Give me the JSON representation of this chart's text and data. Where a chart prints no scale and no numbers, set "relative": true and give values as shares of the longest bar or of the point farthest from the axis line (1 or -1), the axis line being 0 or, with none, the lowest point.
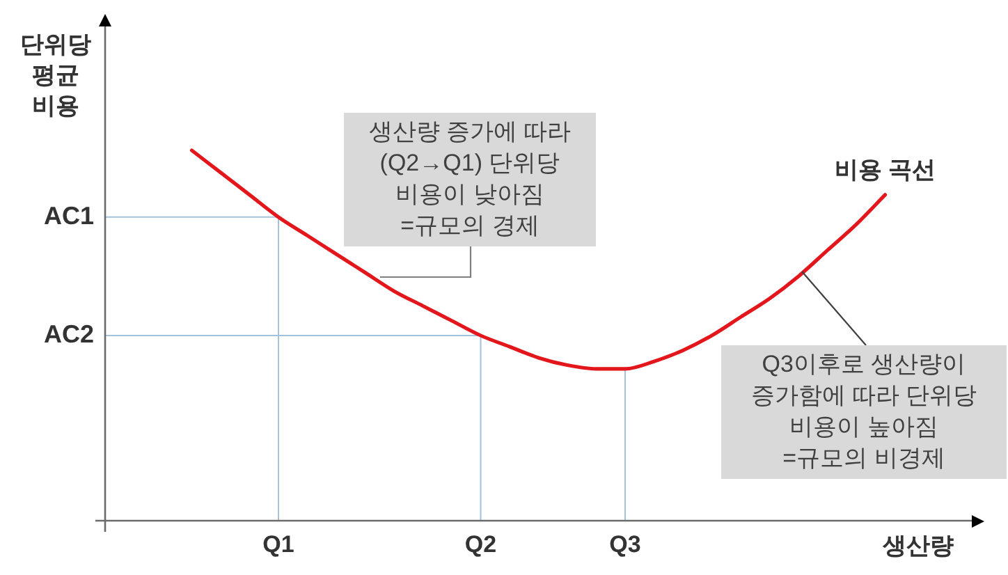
{
  "chart_data": {
    "type": "line",
    "relative": true,
    "xlabel": "생산량",
    "ylabel": "단위당 평균 비용",
    "categories": [
      null,
      null,
      null,
      null,
      null,
      null,
      "Q1",
      null,
      null,
      null,
      null,
      null,
      null,
      "Q2",
      null,
      null,
      null,
      null,
      "Q3",
      null,
      null,
      null,
      null,
      null,
      null,
      null,
      null,
      null,
      null,
      null,
      null
    ],
    "series": [
      {
        "name": "비용 곡선",
        "color": "#e3161c",
        "values": [
          null,
          null,
          null,
          1.0,
          0.94,
          0.88,
          0.82,
          0.77,
          0.72,
          0.67,
          0.62,
          0.58,
          0.54,
          0.5,
          0.47,
          0.44,
          0.42,
          0.41,
          0.41,
          0.43,
          0.46,
          0.5,
          0.55,
          0.6,
          0.66,
          0.73,
          0.8,
          0.88,
          null,
          null,
          null
        ]
      }
    ],
    "ref_lines": [
      {
        "axis": "y",
        "value": 0.82,
        "label": "AC1",
        "color": "#a4c2db"
      },
      {
        "axis": "y",
        "value": 0.5,
        "label": "AC2",
        "color": "#a4c2db"
      },
      {
        "axis": "x",
        "value": "Q1",
        "color": "#a4c2db"
      },
      {
        "axis": "x",
        "value": "Q2",
        "color": "#a4c2db"
      },
      {
        "axis": "x",
        "value": "Q3",
        "color": "#a4c2db"
      }
    ],
    "marker": "none",
    "line_style": "solid",
    "annotations": [
      "생산량 증가에 따라\n(Q2→Q1) 단위당\n비용이 낮아짐\n=규모의 경제",
      "Q3이후로 생산량이\n증가함에 따라 단위당\n비용이 높아짐\n=규모의 비경제"
    ]
  }
}
